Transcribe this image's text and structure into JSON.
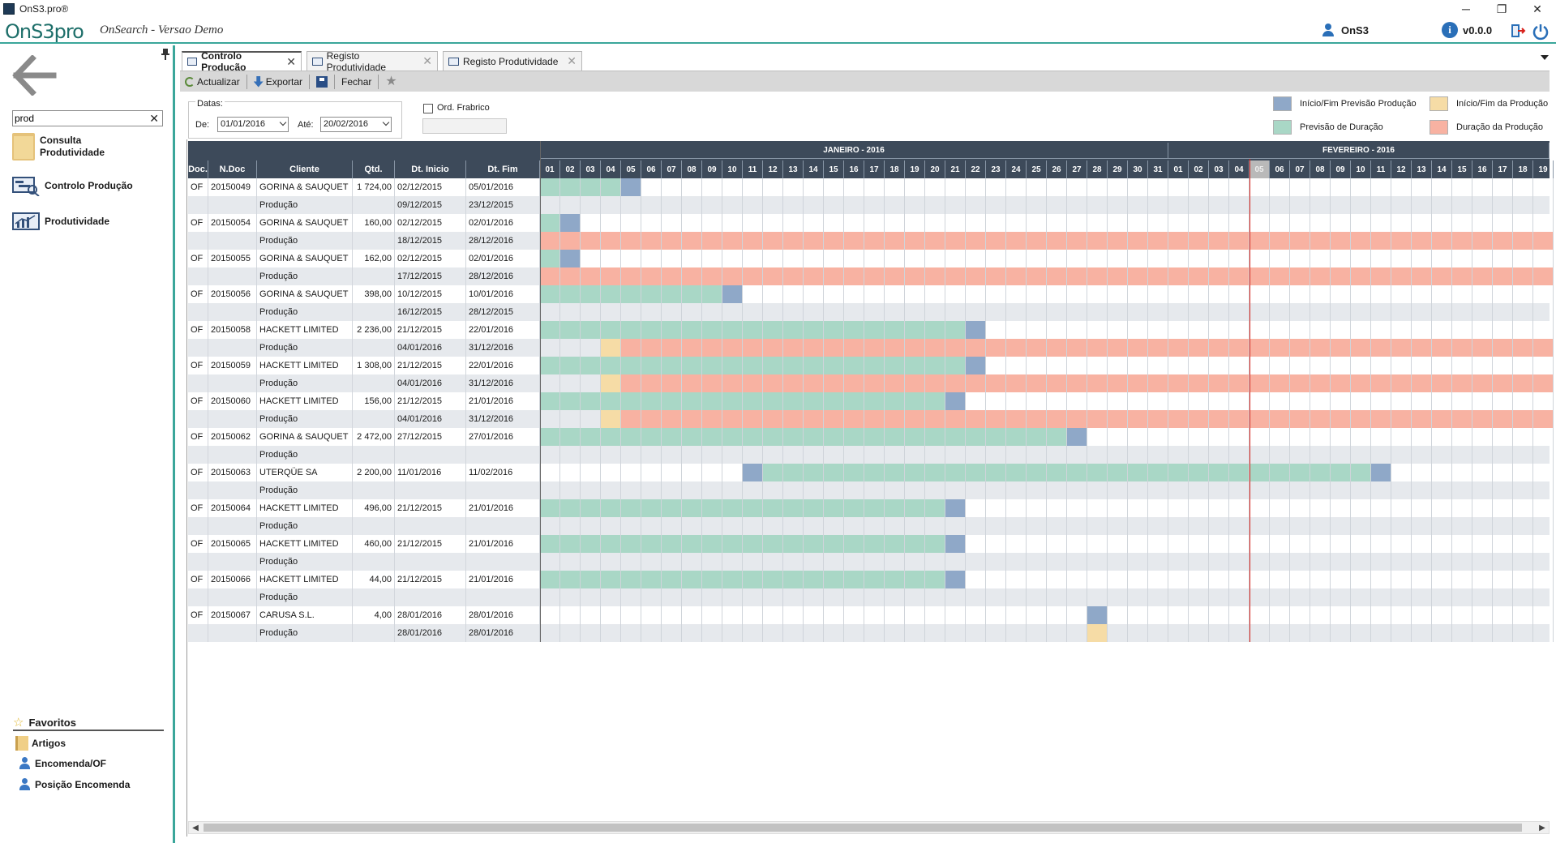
{
  "window": {
    "title": "OnS3.pro®",
    "minimize": "─",
    "restore": "❐",
    "close": "✕"
  },
  "app": {
    "logo": "OnS3pro",
    "subtitle": "OnSearch - Versao Demo",
    "user": "OnS3",
    "version": "v0.0.0"
  },
  "sidebar": {
    "search_value": "prod",
    "items": [
      {
        "label": "Consulta Produtividade"
      },
      {
        "label": "Controlo Produção"
      },
      {
        "label": "Produtividade"
      }
    ],
    "favorites_title": "Favoritos",
    "favorites": [
      {
        "label": "Artigos"
      },
      {
        "label": "Encomenda/OF"
      },
      {
        "label": "Posição Encomenda"
      }
    ]
  },
  "tabs": [
    {
      "label": "Controlo Produção",
      "active": true
    },
    {
      "label": "Registo Produtividade",
      "active": false
    },
    {
      "label": "Registo Produtividade",
      "active": false
    }
  ],
  "toolbar": {
    "refresh": "Actualizar",
    "export": "Exportar",
    "close": "Fechar"
  },
  "filters": {
    "group_title": "Datas:",
    "from_label": "De:",
    "from_value": "01/01/2016",
    "to_label": "Até:",
    "to_value": "20/02/2016",
    "checkbox_label": "Ord. Frabrico",
    "of_value": ""
  },
  "legend": [
    {
      "label": "Início/Fim Previsão Produção",
      "color": "#8fa8c8"
    },
    {
      "label": "Início/Fim da Produção",
      "color": "#f6dca6"
    },
    {
      "label": "Previsão de Duração",
      "color": "#a9d7c6"
    },
    {
      "label": "Duração da Produção",
      "color": "#f8b2a2"
    }
  ],
  "grid": {
    "columns": [
      "Doc.",
      "N.Doc",
      "Cliente",
      "Qtd.",
      "Dt. Inicio",
      "Dt. Fim"
    ],
    "months": [
      "JANEIRO - 2016",
      "FEVEREIRO - 2016"
    ],
    "jan_days": [
      "01",
      "02",
      "03",
      "04",
      "05",
      "06",
      "07",
      "08",
      "09",
      "10",
      "11",
      "12",
      "13",
      "14",
      "15",
      "16",
      "17",
      "18",
      "19",
      "20",
      "21",
      "22",
      "23",
      "24",
      "25",
      "26",
      "27",
      "28",
      "29",
      "30",
      "31"
    ],
    "feb_days": [
      "01",
      "02",
      "03",
      "04",
      "05",
      "06",
      "07",
      "08",
      "09",
      "10",
      "11",
      "12",
      "13",
      "14",
      "15",
      "16",
      "17",
      "18",
      "19"
    ],
    "today_label": "05",
    "rows": [
      {
        "doc": "OF",
        "ndoc": "20150049",
        "cliente": "GORINA & SAUQUET",
        "qtd": "1 724,00",
        "ini": "02/12/2015",
        "fim": "05/01/2016",
        "bar": [
          0,
          4
        ],
        "end": [
          4
        ],
        "sub": "Produção",
        "sini": "09/12/2015",
        "sfim": "23/12/2015",
        "sbar": null
      },
      {
        "doc": "OF",
        "ndoc": "20150054",
        "cliente": "GORINA & SAUQUET",
        "qtd": "160,00",
        "ini": "02/12/2015",
        "fim": "02/01/2016",
        "bar": [
          0,
          1
        ],
        "end": [
          1
        ],
        "sub": "Produção",
        "sini": "18/12/2015",
        "sfim": "28/12/2016",
        "sbar": [
          0,
          50
        ],
        "send": []
      },
      {
        "doc": "OF",
        "ndoc": "20150055",
        "cliente": "GORINA & SAUQUET",
        "qtd": "162,00",
        "ini": "02/12/2015",
        "fim": "02/01/2016",
        "bar": [
          0,
          1
        ],
        "end": [
          1
        ],
        "sub": "Produção",
        "sini": "17/12/2015",
        "sfim": "28/12/2016",
        "sbar": [
          0,
          50
        ],
        "send": []
      },
      {
        "doc": "OF",
        "ndoc": "20150056",
        "cliente": "GORINA & SAUQUET",
        "qtd": "398,00",
        "ini": "10/12/2015",
        "fim": "10/01/2016",
        "bar": [
          0,
          9
        ],
        "end": [
          9
        ],
        "sub": "Produção",
        "sini": "16/12/2015",
        "sfim": "28/12/2015",
        "sbar": null
      },
      {
        "doc": "OF",
        "ndoc": "20150058",
        "cliente": "HACKETT LIMITED",
        "qtd": "2 236,00",
        "ini": "21/12/2015",
        "fim": "22/01/2016",
        "bar": [
          0,
          21
        ],
        "end": [
          21
        ],
        "sub": "Produção",
        "sini": "04/01/2016",
        "sfim": "31/12/2016",
        "sbar": [
          3,
          50
        ],
        "send": [
          3
        ]
      },
      {
        "doc": "OF",
        "ndoc": "20150059",
        "cliente": "HACKETT LIMITED",
        "qtd": "1 308,00",
        "ini": "21/12/2015",
        "fim": "22/01/2016",
        "bar": [
          0,
          21
        ],
        "end": [
          21
        ],
        "sub": "Produção",
        "sini": "04/01/2016",
        "sfim": "31/12/2016",
        "sbar": [
          3,
          50
        ],
        "send": [
          3
        ]
      },
      {
        "doc": "OF",
        "ndoc": "20150060",
        "cliente": "HACKETT LIMITED",
        "qtd": "156,00",
        "ini": "21/12/2015",
        "fim": "21/01/2016",
        "bar": [
          0,
          20
        ],
        "end": [
          20
        ],
        "sub": "Produção",
        "sini": "04/01/2016",
        "sfim": "31/12/2016",
        "sbar": [
          3,
          50
        ],
        "send": [
          3
        ]
      },
      {
        "doc": "OF",
        "ndoc": "20150062",
        "cliente": "GORINA & SAUQUET",
        "qtd": "2 472,00",
        "ini": "27/12/2015",
        "fim": "27/01/2016",
        "bar": [
          0,
          26
        ],
        "end": [
          26
        ],
        "sub": "Produção",
        "sini": "",
        "sfim": "",
        "sbar": null
      },
      {
        "doc": "OF",
        "ndoc": "20150063",
        "cliente": "UTERQÜE SA",
        "qtd": "2 200,00",
        "ini": "11/01/2016",
        "fim": "11/02/2016",
        "bar": [
          10,
          41
        ],
        "end": [
          10,
          41
        ],
        "sub": "Produção",
        "sini": "",
        "sfim": "",
        "sbar": null
      },
      {
        "doc": "OF",
        "ndoc": "20150064",
        "cliente": "HACKETT LIMITED",
        "qtd": "496,00",
        "ini": "21/12/2015",
        "fim": "21/01/2016",
        "bar": [
          0,
          20
        ],
        "end": [
          20
        ],
        "sub": "Produção",
        "sini": "",
        "sfim": "",
        "sbar": null
      },
      {
        "doc": "OF",
        "ndoc": "20150065",
        "cliente": "HACKETT LIMITED",
        "qtd": "460,00",
        "ini": "21/12/2015",
        "fim": "21/01/2016",
        "bar": [
          0,
          20
        ],
        "end": [
          20
        ],
        "sub": "Produção",
        "sini": "",
        "sfim": "",
        "sbar": null
      },
      {
        "doc": "OF",
        "ndoc": "20150066",
        "cliente": "HACKETT LIMITED",
        "qtd": "44,00",
        "ini": "21/12/2015",
        "fim": "21/01/2016",
        "bar": [
          0,
          20
        ],
        "end": [
          20
        ],
        "sub": "Produção",
        "sini": "",
        "sfim": "",
        "sbar": null
      },
      {
        "doc": "OF",
        "ndoc": "20150067",
        "cliente": "CARUSA S.L.",
        "qtd": "4,00",
        "ini": "28/01/2016",
        "fim": "28/01/2016",
        "bar": [
          27,
          27
        ],
        "end": [
          27
        ],
        "sub": "Produção",
        "sini": "28/01/2016",
        "sfim": "28/01/2016",
        "sbar": [
          27,
          27
        ],
        "send": [
          27
        ]
      }
    ]
  }
}
